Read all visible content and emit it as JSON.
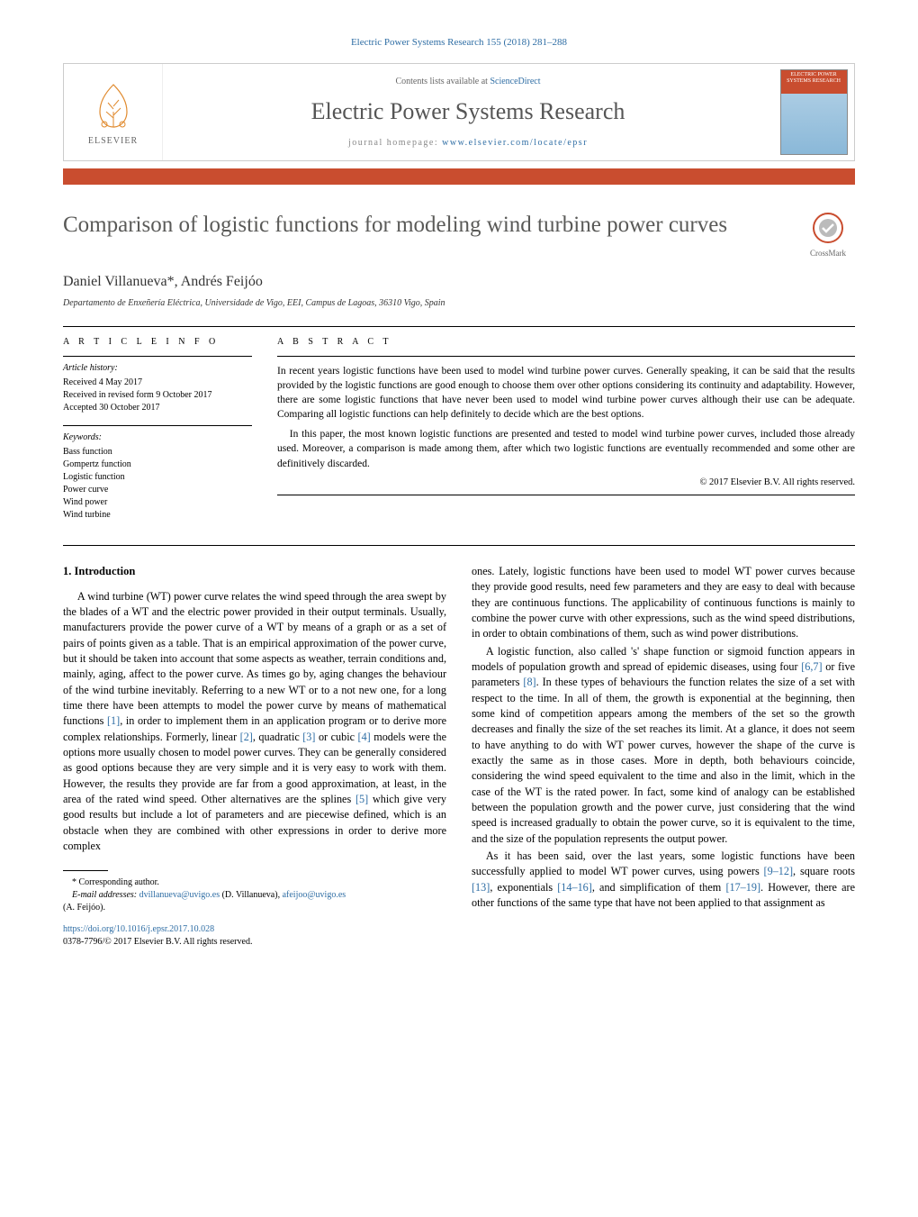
{
  "header": {
    "citation_line": "Electric Power Systems Research 155 (2018) 281–288",
    "citation_link": "Electric Power Systems Research 155 (2018) 281–288",
    "contents_prefix": "Contents lists available at ",
    "contents_link": "ScienceDirect",
    "journal_name": "Electric Power Systems Research",
    "homepage_prefix": "journal homepage: ",
    "homepage_url": "www.elsevier.com/locate/epsr",
    "publisher_label": "ELSEVIER",
    "cover_text": "ELECTRIC POWER SYSTEMS RESEARCH"
  },
  "crossmark_label": "CrossMark",
  "title": "Comparison of logistic functions for modeling wind turbine power curves",
  "authors_html": "Daniel Villanueva*, Andrés Feijóo",
  "affiliation": "Departamento de Enxeñería Eléctrica, Universidade de Vigo, EEI, Campus de Lagoas, 36310 Vigo, Spain",
  "article_info": {
    "label": "A R T I C L E   I N F O",
    "history_heading": "Article history:",
    "history": [
      "Received 4 May 2017",
      "Received in revised form 9 October 2017",
      "Accepted 30 October 2017"
    ],
    "keywords_heading": "Keywords:",
    "keywords": [
      "Bass function",
      "Gompertz function",
      "Logistic function",
      "Power curve",
      "Wind power",
      "Wind turbine"
    ]
  },
  "abstract": {
    "label": "A B S T R A C T",
    "paragraphs": [
      "In recent years logistic functions have been used to model wind turbine power curves. Generally speaking, it can be said that the results provided by the logistic functions are good enough to choose them over other options considering its continuity and adaptability. However, there are some logistic functions that have never been used to model wind turbine power curves although their use can be adequate. Comparing all logistic functions can help definitely to decide which are the best options.",
      "In this paper, the most known logistic functions are presented and tested to model wind turbine power curves, included those already used. Moreover, a comparison is made among them, after which two logistic functions are eventually recommended and some other are definitively discarded."
    ],
    "copyright": "© 2017 Elsevier B.V. All rights reserved."
  },
  "body": {
    "section_number": "1.",
    "section_title": "Introduction",
    "left_paras": [
      "A wind turbine (WT) power curve relates the wind speed through the area swept by the blades of a WT and the electric power provided in their output terminals. Usually, manufacturers provide the power curve of a WT by means of a graph or as a set of pairs of points given as a table. That is an empirical approximation of the power curve, but it should be taken into account that some aspects as weather, terrain conditions and, mainly, aging, affect to the power curve. As times go by, aging changes the behaviour of the wind turbine inevitably. Referring to a new WT or to a not new one, for a long time there have been attempts to model the power curve by means of mathematical functions [1], in order to implement them in an application program or to derive more complex relationships. Formerly, linear [2], quadratic [3] or cubic [4] models were the options more usually chosen to model power curves. They can be generally considered as good options because they are very simple and it is very easy to work with them. However, the results they provide are far from a good approximation, at least, in the area of the rated wind speed. Other alternatives are the splines [5] which give very good results but include a lot of parameters and are piecewise defined, which is an obstacle when they are combined with other expressions in order to derive more complex"
    ],
    "right_paras": [
      "ones. Lately, logistic functions have been used to model WT power curves because they provide good results, need few parameters and they are easy to deal with because they are continuous functions. The applicability of continuous functions is mainly to combine the power curve with other expressions, such as the wind speed distributions, in order to obtain combinations of them, such as wind power distributions.",
      "A logistic function, also called 's' shape function or sigmoid function appears in models of population growth and spread of epidemic diseases, using four [6,7] or five parameters [8]. In these types of behaviours the function relates the size of a set with respect to the time. In all of them, the growth is exponential at the beginning, then some kind of competition appears among the members of the set so the growth decreases and finally the size of the set reaches its limit. At a glance, it does not seem to have anything to do with WT power curves, however the shape of the curve is exactly the same as in those cases. More in depth, both behaviours coincide, considering the wind speed equivalent to the time and also in the limit, which in the case of the WT is the rated power. In fact, some kind of analogy can be established between the population growth and the power curve, just considering that the wind speed is increased gradually to obtain the power curve, so it is equivalent to the time, and the size of the population represents the output power.",
      "As it has been said, over the last years, some logistic functions have been successfully applied to model WT power curves, using powers [9–12], square roots [13], exponentials [14–16], and simplification of them [17–19]. However, there are other functions of the same type that have not been applied to that assignment as"
    ]
  },
  "footnotes": {
    "corresponding": "* Corresponding author.",
    "email_label": "E-mail addresses:",
    "emails": [
      {
        "addr": "dvillanueva@uvigo.es",
        "who": "(D. Villanueva)"
      },
      {
        "addr": "afeijoo@uvigo.es",
        "who": "(A. Feijóo)."
      }
    ]
  },
  "doi": {
    "url": "https://doi.org/10.1016/j.epsr.2017.10.028",
    "issn_line": "0378-7796/© 2017 Elsevier B.V. All rights reserved."
  },
  "colors": {
    "accent": "#c94d2f",
    "link": "#2e6da4",
    "title_gray": "#5a5a58"
  }
}
